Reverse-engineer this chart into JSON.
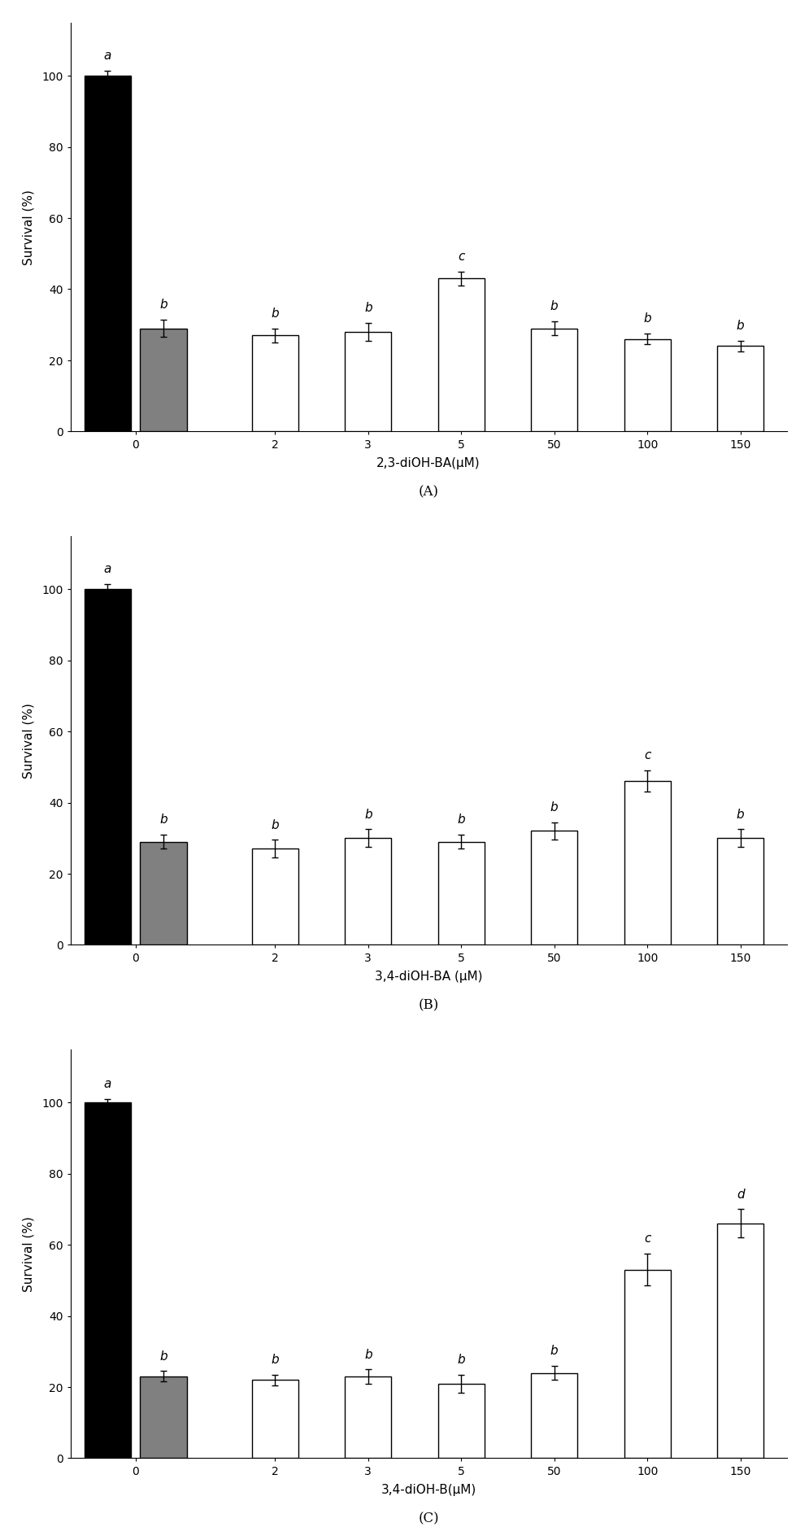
{
  "panels": [
    {
      "xlabel": "2,3-diOH-BA(μM)",
      "panel_label": "(A)",
      "x_positions": [
        0,
        0.6,
        1.8,
        2.8,
        3.8,
        4.8,
        5.8,
        6.8
      ],
      "bar_heights": [
        100,
        29,
        27,
        28,
        43,
        29,
        26,
        24
      ],
      "bar_errors": [
        1.5,
        2.5,
        2.0,
        2.5,
        2.0,
        2.0,
        1.5,
        1.5
      ],
      "bar_colors": [
        "#000000",
        "#808080",
        "#ffffff",
        "#ffffff",
        "#ffffff",
        "#ffffff",
        "#ffffff",
        "#ffffff"
      ],
      "letter_labels": [
        "a",
        "b",
        "b",
        "b",
        "c",
        "b",
        "b",
        "b"
      ],
      "ylim": [
        0,
        115
      ],
      "yticks": [
        0,
        20,
        40,
        60,
        80,
        100
      ]
    },
    {
      "xlabel": "3,4-diOH-BA (μM)",
      "panel_label": "(B)",
      "x_positions": [
        0,
        0.6,
        1.8,
        2.8,
        3.8,
        4.8,
        5.8,
        6.8
      ],
      "bar_heights": [
        100,
        29,
        27,
        30,
        29,
        32,
        46,
        30
      ],
      "bar_errors": [
        1.5,
        2.0,
        2.5,
        2.5,
        2.0,
        2.5,
        3.0,
        2.5
      ],
      "bar_colors": [
        "#000000",
        "#808080",
        "#ffffff",
        "#ffffff",
        "#ffffff",
        "#ffffff",
        "#ffffff",
        "#ffffff"
      ],
      "letter_labels": [
        "a",
        "b",
        "b",
        "b",
        "b",
        "b",
        "c",
        "b"
      ],
      "ylim": [
        0,
        115
      ],
      "yticks": [
        0,
        20,
        40,
        60,
        80,
        100
      ]
    },
    {
      "xlabel": "3,4-diOH-B(μM)",
      "panel_label": "(C)",
      "x_positions": [
        0,
        0.6,
        1.8,
        2.8,
        3.8,
        4.8,
        5.8,
        6.8
      ],
      "bar_heights": [
        100,
        23,
        22,
        23,
        21,
        24,
        53,
        66
      ],
      "bar_errors": [
        1.0,
        1.5,
        1.5,
        2.0,
        2.5,
        2.0,
        4.5,
        4.0
      ],
      "bar_colors": [
        "#000000",
        "#808080",
        "#ffffff",
        "#ffffff",
        "#ffffff",
        "#ffffff",
        "#ffffff",
        "#ffffff"
      ],
      "letter_labels": [
        "a",
        "b",
        "b",
        "b",
        "b",
        "b",
        "c",
        "d"
      ],
      "ylim": [
        0,
        115
      ],
      "yticks": [
        0,
        20,
        40,
        60,
        80,
        100
      ]
    }
  ],
  "ylabel": "Survival (%)",
  "bar_width": 0.5,
  "figure_bgcolor": "#ffffff",
  "axes_bgcolor": "#ffffff",
  "capsize": 3,
  "elinewidth": 1.0,
  "letter_fontsize": 11,
  "tick_fontsize": 10,
  "label_fontsize": 11,
  "panel_label_fontsize": 12,
  "xtick_positions": [
    0.3,
    1.8,
    2.8,
    3.8,
    4.8,
    5.8,
    6.8
  ],
  "xtick_labels": [
    "0",
    "2",
    "3",
    "5",
    "50",
    "100",
    "150"
  ],
  "xlim": [
    -0.4,
    7.3
  ]
}
